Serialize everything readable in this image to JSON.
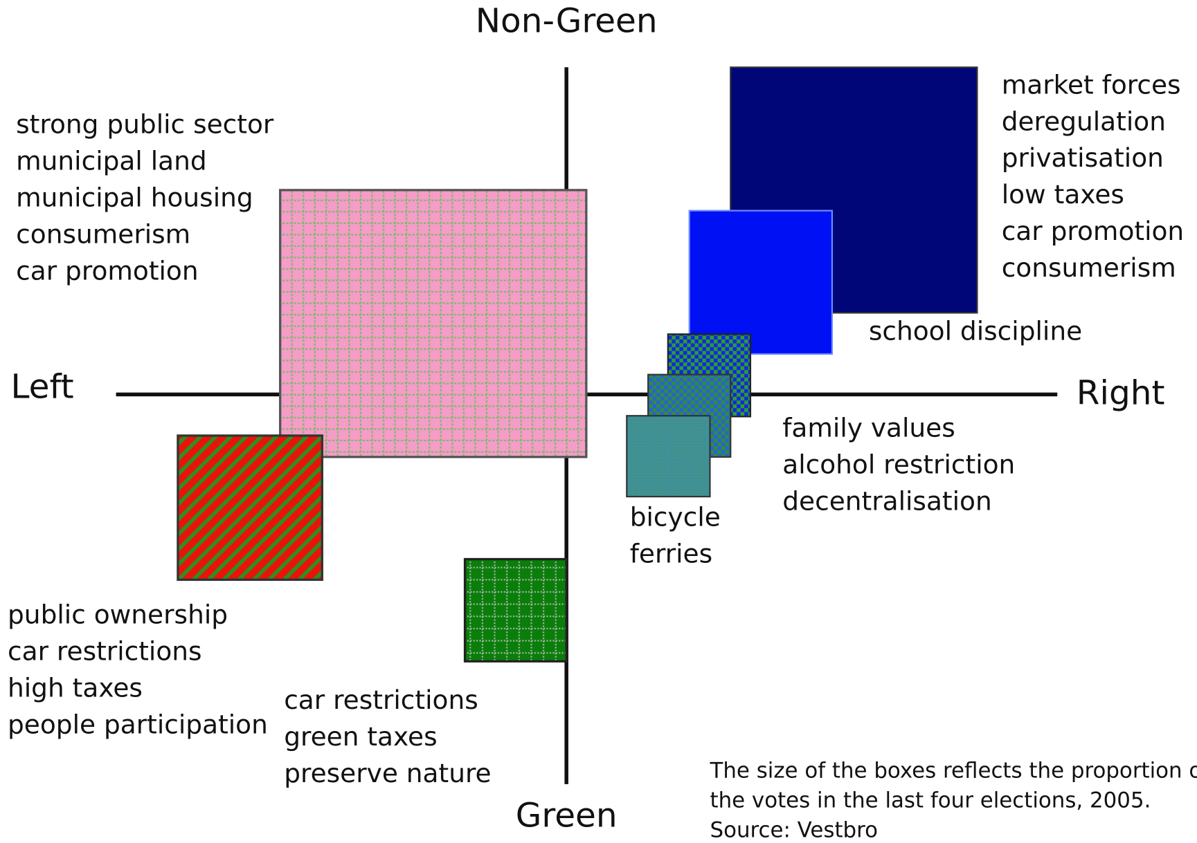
{
  "axes": {
    "top": "Non-Green",
    "bottom": "Green",
    "left": "Left",
    "right": "Right"
  },
  "groups": [
    {
      "lines": [
        "strong public sector",
        "municipal land",
        "municipal housing",
        "consumerism",
        "car promotion"
      ]
    },
    {
      "lines": [
        "market forces",
        "deregulation",
        "privatisation",
        "low taxes",
        "car promotion",
        "consumerism"
      ]
    },
    {
      "lines": [
        "school discipline"
      ]
    },
    {
      "lines": [
        "family values",
        "alcohol restriction",
        "decentralisation"
      ]
    },
    {
      "lines": [
        "bicycle",
        "ferries"
      ]
    },
    {
      "lines": [
        "public ownership",
        "car restrictions",
        "high taxes",
        "people participation"
      ]
    },
    {
      "lines": [
        "car restrictions",
        "green taxes",
        "preserve nature"
      ]
    }
  ],
  "note": [
    "The size of the boxes reflects the proportion of",
    "the votes in the last four elections, 2005.",
    "Source: Vestbro"
  ]
}
